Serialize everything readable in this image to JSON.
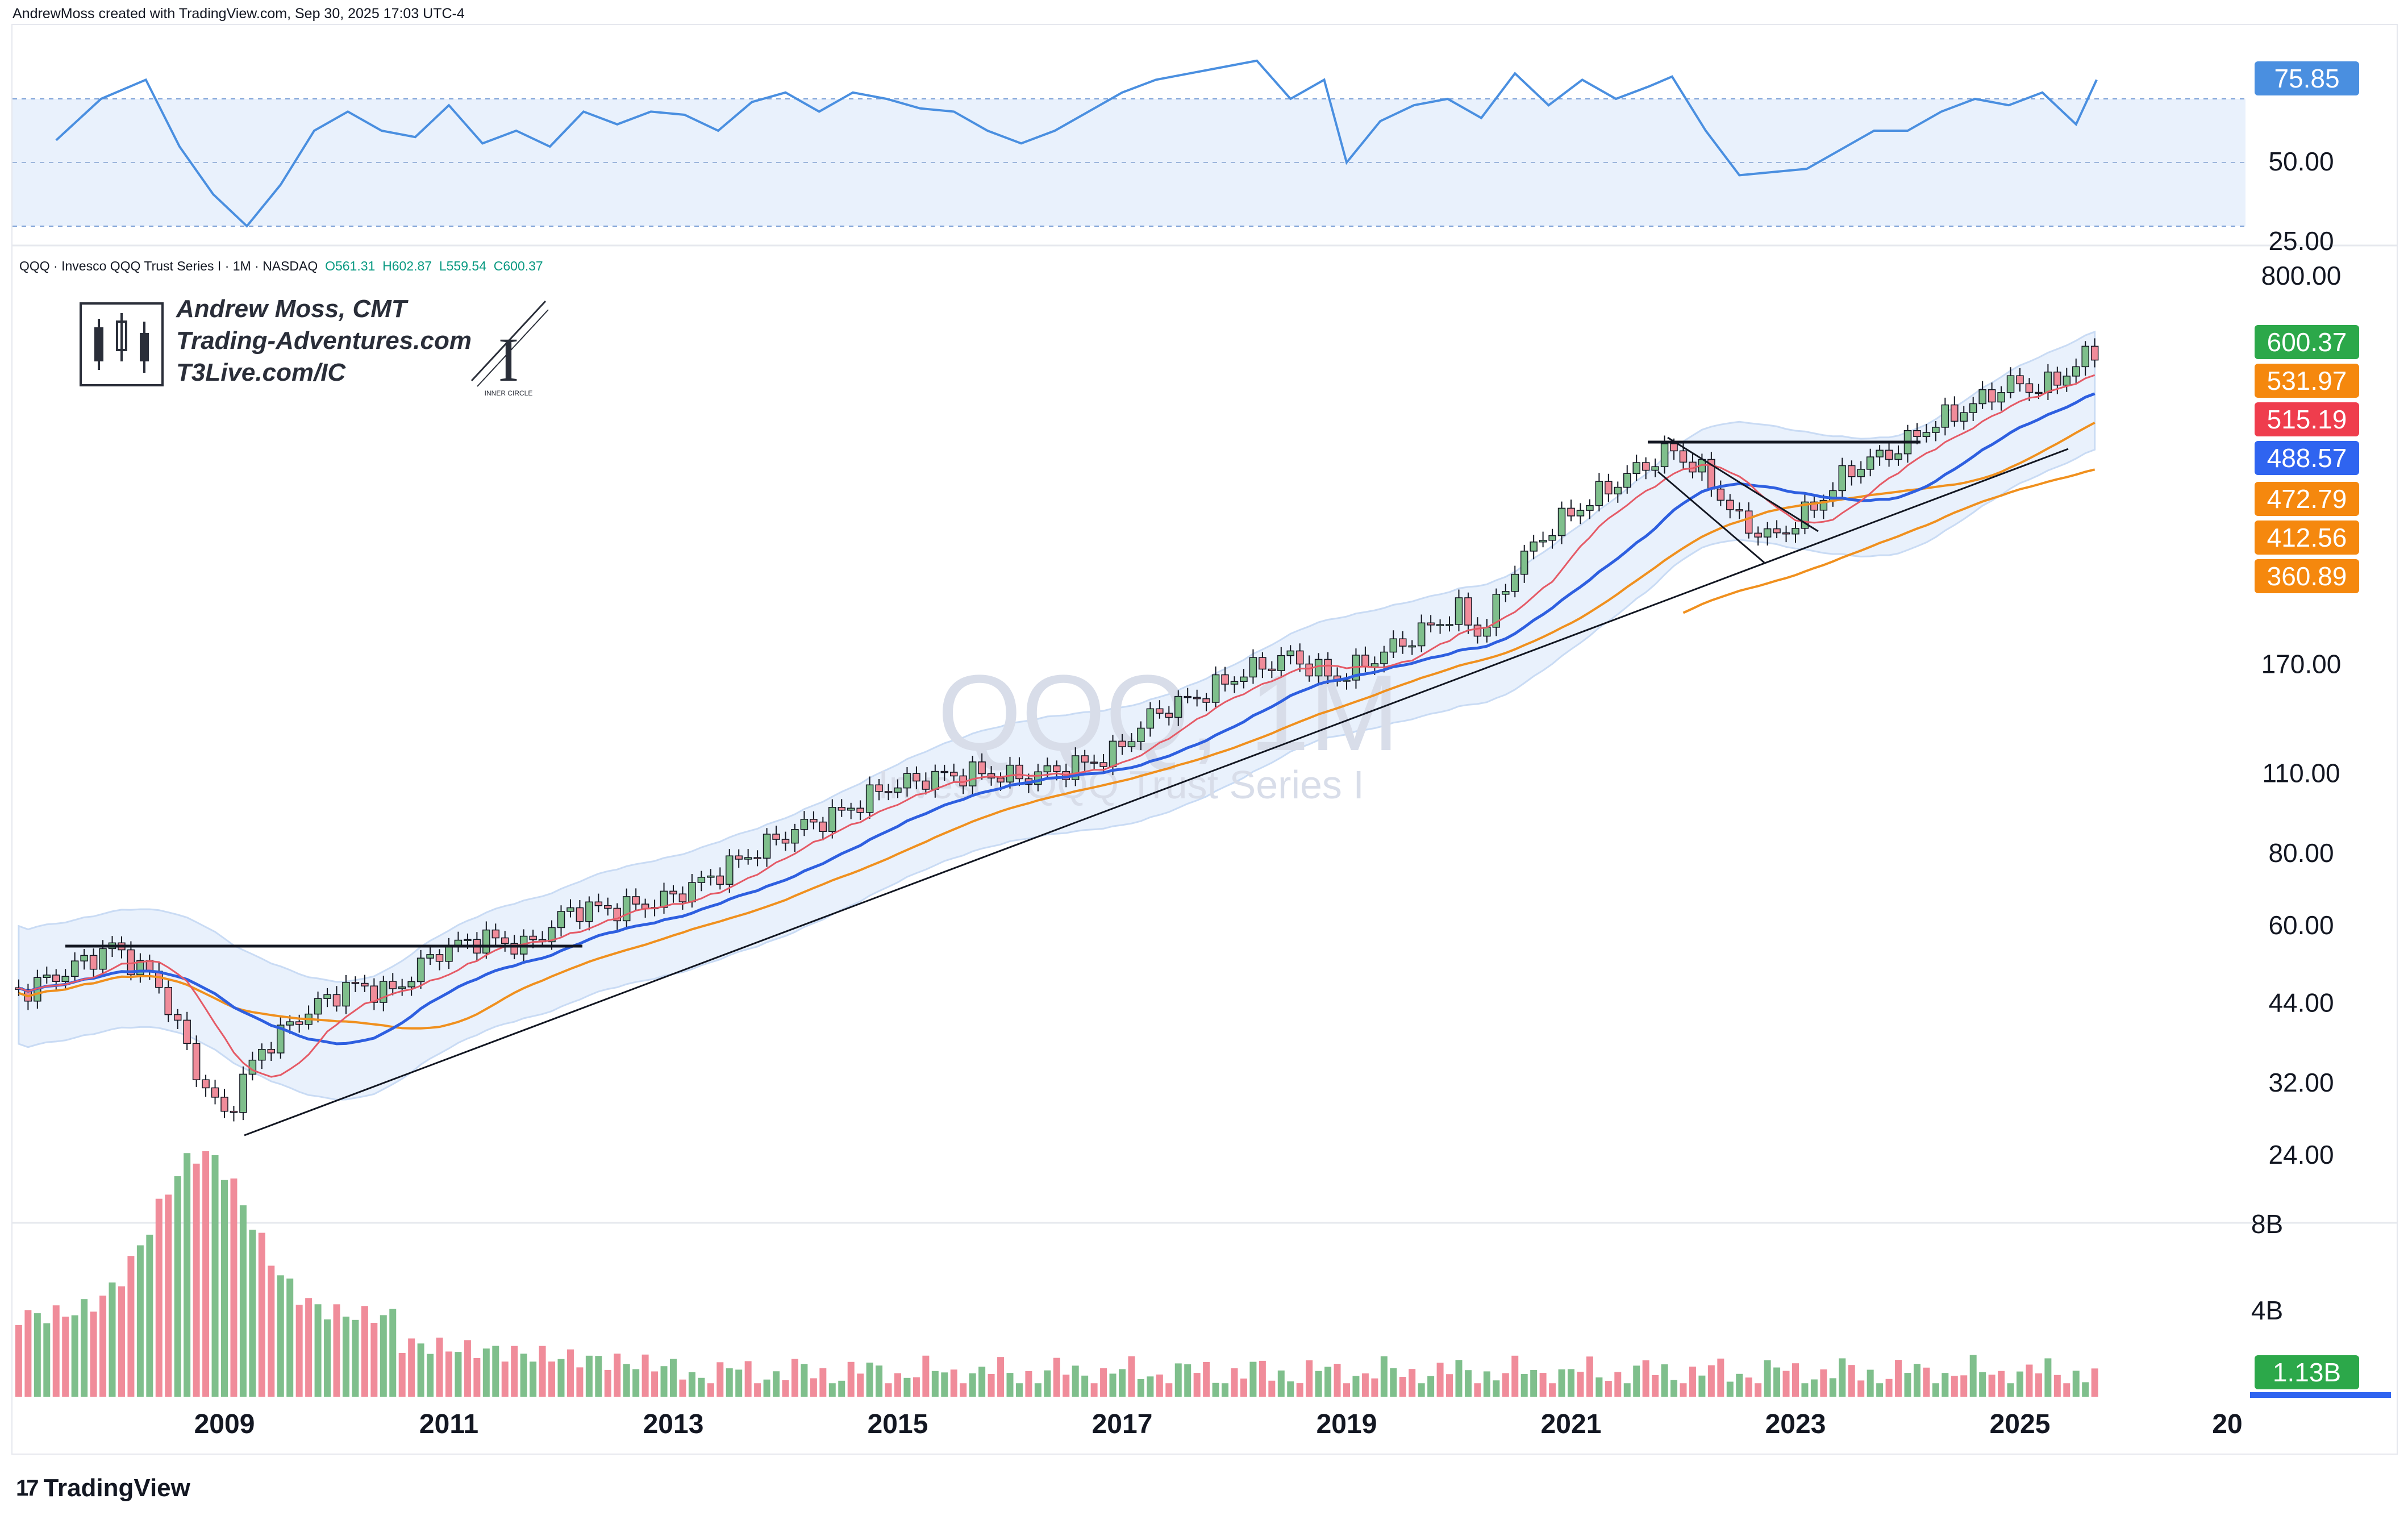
{
  "header": {
    "caption": "AndrewMoss created with TradingView.com, Sep 30, 2025 17:03 UTC-4"
  },
  "legend": {
    "symbol_text": "QQQ · Invesco QQQ Trust Series I · 1M · NASDAQ",
    "open": "O561.31",
    "high": "H602.87",
    "low": "L559.54",
    "close": "C600.37"
  },
  "author": {
    "name": "Andrew Moss, CMT",
    "site1": "Trading-Adventures.com",
    "site2": "T3Live.com/IC",
    "badge_text": "INNER CIRCLE",
    "badge_letter": "I"
  },
  "watermark": {
    "ticker": "QQQ, 1M",
    "name": "Invesco QQQ Trust Series I"
  },
  "brand": {
    "name": "TradingView",
    "logo_glyph": "17"
  },
  "colors": {
    "up": "#7fbf8c",
    "down": "#f08c9a",
    "rsi": "#4a8fe0",
    "ma_red": "#e55a66",
    "ma_blue": "#2e5fe0",
    "ma_orange": "#f0901e",
    "band_fill": "#e9f1fc"
  },
  "price_tags": [
    {
      "label": "600.37",
      "color": "#2ca84a"
    },
    {
      "label": "531.97",
      "color": "#f5880e"
    },
    {
      "label": "515.19",
      "color": "#ef3d4d"
    },
    {
      "label": "488.57",
      "color": "#2f64f0"
    },
    {
      "label": "472.79",
      "color": "#f5880e"
    },
    {
      "label": "412.56",
      "color": "#f5880e"
    },
    {
      "label": "360.89",
      "color": "#f5880e"
    }
  ],
  "rsi_tag": {
    "label": "75.85",
    "color": "#4a8fe0"
  },
  "volume_tag": {
    "label": "1.13B",
    "color": "#2ca84a"
  },
  "chart_data": [
    {
      "type": "line",
      "panel": "rsi",
      "y_ticks": [
        "50.00",
        "25.00"
      ],
      "ylim": [
        20,
        90
      ],
      "levels": [
        70,
        50,
        30
      ],
      "x": [
        2007.5,
        2007.9,
        2008.3,
        2008.6,
        2008.9,
        2009.2,
        2009.5,
        2009.8,
        2010.1,
        2010.4,
        2010.7,
        2011.0,
        2011.3,
        2011.6,
        2011.9,
        2012.2,
        2012.5,
        2012.8,
        2013.1,
        2013.4,
        2013.7,
        2014.0,
        2014.3,
        2014.6,
        2014.9,
        2015.2,
        2015.5,
        2015.8,
        2016.1,
        2016.4,
        2016.7,
        2017.0,
        2017.3,
        2017.6,
        2017.9,
        2018.2,
        2018.5,
        2018.8,
        2019.0,
        2019.3,
        2019.6,
        2019.9,
        2020.2,
        2020.5,
        2020.8,
        2021.1,
        2021.4,
        2021.7,
        2021.9,
        2022.2,
        2022.5,
        2022.8,
        2023.1,
        2023.4,
        2023.7,
        2024.0,
        2024.3,
        2024.6,
        2024.9,
        2025.2,
        2025.5,
        2025.7
      ],
      "values": [
        57,
        70,
        76,
        55,
        40,
        30,
        43,
        60,
        66,
        60,
        58,
        68,
        56,
        60,
        55,
        66,
        62,
        66,
        65,
        60,
        69,
        72,
        66,
        72,
        70,
        67,
        66,
        60,
        56,
        60,
        66,
        72,
        76,
        78,
        80,
        82,
        70,
        76,
        50,
        63,
        68,
        70,
        64,
        78,
        68,
        76,
        70,
        74,
        77,
        60,
        46,
        47,
        48,
        54,
        60,
        60,
        66,
        70,
        68,
        72,
        62,
        76
      ]
    },
    {
      "type": "candlestick",
      "panel": "price",
      "scale": "log",
      "y_ticks": [
        "800.00",
        "170.00",
        "110.00",
        "80.00",
        "60.00",
        "44.00",
        "32.00",
        "24.00"
      ],
      "x_ticks": [
        "2009",
        "2011",
        "2013",
        "2015",
        "2017",
        "2019",
        "2021",
        "2023",
        "2025",
        "20"
      ],
      "x": [
        2007.2,
        2007.6,
        2008.0,
        2008.4,
        2008.8,
        2009.0,
        2009.3,
        2009.7,
        2010.1,
        2010.5,
        2010.9,
        2011.3,
        2011.7,
        2012.1,
        2012.5,
        2012.9,
        2013.3,
        2013.7,
        2014.1,
        2014.5,
        2014.9,
        2015.3,
        2015.7,
        2016.1,
        2016.5,
        2016.9,
        2017.3,
        2017.7,
        2018.1,
        2018.5,
        2018.9,
        2019.2,
        2019.6,
        2020.0,
        2020.2,
        2020.5,
        2020.8,
        2021.1,
        2021.5,
        2021.9,
        2022.2,
        2022.5,
        2022.8,
        2023.1,
        2023.5,
        2023.9,
        2024.2,
        2024.6,
        2024.9,
        2025.2,
        2025.4,
        2025.7
      ],
      "values": [
        46,
        50,
        55,
        48,
        32,
        28,
        36,
        42,
        47,
        46,
        54,
        57,
        55,
        64,
        64,
        66,
        72,
        80,
        88,
        94,
        104,
        108,
        110,
        108,
        112,
        118,
        140,
        150,
        165,
        175,
        160,
        172,
        190,
        210,
        190,
        250,
        290,
        320,
        360,
        400,
        360,
        300,
        280,
        310,
        370,
        400,
        440,
        480,
        520,
        510,
        540,
        600
      ]
    },
    {
      "type": "bar",
      "panel": "volume",
      "y_ticks": [
        "8B",
        "4B"
      ],
      "ylim": [
        0,
        8
      ]
    }
  ]
}
